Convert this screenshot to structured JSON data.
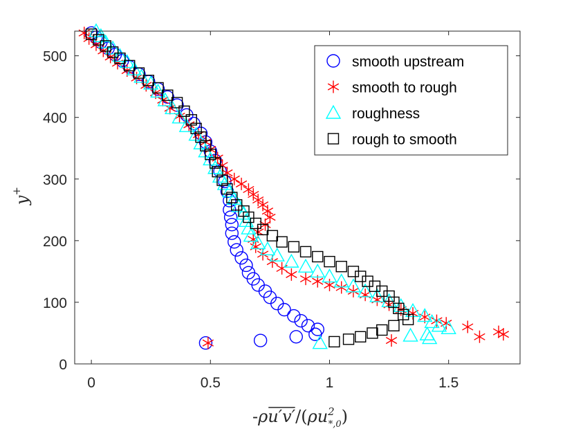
{
  "chart_data": {
    "type": "scatter",
    "xlim": [
      -0.07,
      1.8
    ],
    "ylim": [
      0,
      540
    ],
    "x_ticks": [
      0,
      0.5,
      1,
      1.5
    ],
    "x_tick_labels": [
      "0",
      "0.5",
      "1",
      "1.5"
    ],
    "y_ticks": [
      0,
      100,
      200,
      300,
      400,
      500
    ],
    "y_tick_labels": [
      "0",
      "100",
      "200",
      "300",
      "400",
      "500"
    ],
    "xlabel": {
      "prefix": "-",
      "rho": "ρ",
      "uv": "u′v′",
      "slash": "/(",
      "rho2": "ρu",
      "sup": "2",
      "sub": "*,0",
      "close": ")"
    },
    "ylabel": {
      "base": "y",
      "sup": "+"
    },
    "legend_position": "top-right",
    "grid": false,
    "series": [
      {
        "name": "smooth upstream",
        "marker": "circle",
        "color": "#0000ff",
        "points": [
          [
            0.0,
            537
          ],
          [
            0.02,
            530
          ],
          [
            0.04,
            522
          ],
          [
            0.07,
            512
          ],
          [
            0.1,
            502
          ],
          [
            0.13,
            492
          ],
          [
            0.16,
            482
          ],
          [
            0.2,
            470
          ],
          [
            0.24,
            458
          ],
          [
            0.28,
            446
          ],
          [
            0.32,
            433
          ],
          [
            0.36,
            420
          ],
          [
            0.4,
            404
          ],
          [
            0.43,
            390
          ],
          [
            0.46,
            374
          ],
          [
            0.48,
            360
          ],
          [
            0.5,
            345
          ],
          [
            0.52,
            330
          ],
          [
            0.54,
            313
          ],
          [
            0.56,
            296
          ],
          [
            0.57,
            280
          ],
          [
            0.58,
            265
          ],
          [
            0.58,
            250
          ],
          [
            0.585,
            238
          ],
          [
            0.59,
            226
          ],
          [
            0.59,
            212
          ],
          [
            0.6,
            198
          ],
          [
            0.61,
            185
          ],
          [
            0.63,
            172
          ],
          [
            0.65,
            160
          ],
          [
            0.66,
            148
          ],
          [
            0.68,
            138
          ],
          [
            0.7,
            128
          ],
          [
            0.73,
            118
          ],
          [
            0.75,
            108
          ],
          [
            0.78,
            98
          ],
          [
            0.81,
            88
          ],
          [
            0.85,
            78
          ],
          [
            0.88,
            70
          ],
          [
            0.91,
            62
          ],
          [
            0.95,
            56
          ],
          [
            0.94,
            48
          ],
          [
            0.86,
            44
          ],
          [
            0.71,
            38
          ],
          [
            0.48,
            34
          ]
        ]
      },
      {
        "name": "smooth to rough",
        "marker": "asterisk",
        "color": "#ff0000",
        "points": [
          [
            -0.03,
            537
          ],
          [
            -0.01,
            528
          ],
          [
            0.02,
            518
          ],
          [
            0.05,
            508
          ],
          [
            0.08,
            498
          ],
          [
            0.11,
            488
          ],
          [
            0.15,
            476
          ],
          [
            0.19,
            464
          ],
          [
            0.23,
            452
          ],
          [
            0.27,
            440
          ],
          [
            0.3,
            428
          ],
          [
            0.33,
            415
          ],
          [
            0.37,
            402
          ],
          [
            0.41,
            388
          ],
          [
            0.45,
            372
          ],
          [
            0.48,
            360
          ],
          [
            0.5,
            348
          ],
          [
            0.53,
            334
          ],
          [
            0.55,
            322
          ],
          [
            0.57,
            310
          ],
          [
            0.6,
            300
          ],
          [
            0.63,
            292
          ],
          [
            0.66,
            283
          ],
          [
            0.68,
            275
          ],
          [
            0.7,
            266
          ],
          [
            0.72,
            258
          ],
          [
            0.74,
            248
          ],
          [
            0.75,
            238
          ],
          [
            0.73,
            226
          ],
          [
            0.7,
            214
          ],
          [
            0.68,
            202
          ],
          [
            0.69,
            190
          ],
          [
            0.72,
            178
          ],
          [
            0.76,
            166
          ],
          [
            0.8,
            155
          ],
          [
            0.84,
            145
          ],
          [
            0.9,
            138
          ],
          [
            0.95,
            134
          ],
          [
            1.0,
            128
          ],
          [
            1.05,
            124
          ],
          [
            1.1,
            118
          ],
          [
            1.15,
            112
          ],
          [
            1.2,
            104
          ],
          [
            1.25,
            96
          ],
          [
            1.3,
            88
          ],
          [
            1.35,
            82
          ],
          [
            1.4,
            76
          ],
          [
            1.45,
            70
          ],
          [
            1.49,
            66
          ],
          [
            1.58,
            60
          ],
          [
            1.63,
            44
          ],
          [
            1.71,
            52
          ],
          [
            1.73,
            48
          ],
          [
            1.26,
            38
          ],
          [
            0.49,
            34
          ]
        ]
      },
      {
        "name": "roughness",
        "marker": "triangle",
        "color": "#00ffff",
        "points": [
          [
            0.02,
            540
          ],
          [
            0.04,
            532
          ],
          [
            0.06,
            522
          ],
          [
            0.09,
            512
          ],
          [
            0.12,
            500
          ],
          [
            0.15,
            490
          ],
          [
            0.18,
            478
          ],
          [
            0.21,
            466
          ],
          [
            0.25,
            455
          ],
          [
            0.28,
            442
          ],
          [
            0.31,
            428
          ],
          [
            0.34,
            415
          ],
          [
            0.37,
            400
          ],
          [
            0.4,
            386
          ],
          [
            0.44,
            372
          ],
          [
            0.46,
            358
          ],
          [
            0.48,
            345
          ],
          [
            0.5,
            332
          ],
          [
            0.52,
            318
          ],
          [
            0.54,
            304
          ],
          [
            0.56,
            292
          ],
          [
            0.58,
            280
          ],
          [
            0.6,
            268
          ],
          [
            0.62,
            256
          ],
          [
            0.64,
            244
          ],
          [
            0.65,
            232
          ],
          [
            0.66,
            220
          ],
          [
            0.67,
            208
          ],
          [
            0.7,
            196
          ],
          [
            0.74,
            186
          ],
          [
            0.78,
            176
          ],
          [
            0.84,
            166
          ],
          [
            0.9,
            158
          ],
          [
            0.95,
            150
          ],
          [
            1.0,
            142
          ],
          [
            1.05,
            134
          ],
          [
            1.1,
            126
          ],
          [
            1.15,
            118
          ],
          [
            1.2,
            110
          ],
          [
            1.25,
            102
          ],
          [
            1.3,
            94
          ],
          [
            1.35,
            86
          ],
          [
            1.4,
            78
          ],
          [
            1.43,
            68
          ],
          [
            1.46,
            62
          ],
          [
            1.5,
            58
          ],
          [
            1.41,
            48
          ],
          [
            1.42,
            42
          ],
          [
            1.34,
            46
          ],
          [
            0.96,
            34
          ]
        ]
      },
      {
        "name": "rough to smooth",
        "marker": "square",
        "color": "#000000",
        "points": [
          [
            0.0,
            535
          ],
          [
            0.03,
            526
          ],
          [
            0.06,
            516
          ],
          [
            0.09,
            506
          ],
          [
            0.12,
            496
          ],
          [
            0.16,
            484
          ],
          [
            0.2,
            472
          ],
          [
            0.24,
            460
          ],
          [
            0.28,
            448
          ],
          [
            0.32,
            436
          ],
          [
            0.36,
            424
          ],
          [
            0.39,
            410
          ],
          [
            0.42,
            396
          ],
          [
            0.44,
            382
          ],
          [
            0.46,
            368
          ],
          [
            0.48,
            354
          ],
          [
            0.5,
            340
          ],
          [
            0.52,
            326
          ],
          [
            0.53,
            312
          ],
          [
            0.55,
            298
          ],
          [
            0.57,
            284
          ],
          [
            0.59,
            270
          ],
          [
            0.61,
            258
          ],
          [
            0.64,
            248
          ],
          [
            0.66,
            238
          ],
          [
            0.69,
            228
          ],
          [
            0.72,
            218
          ],
          [
            0.76,
            208
          ],
          [
            0.8,
            198
          ],
          [
            0.85,
            190
          ],
          [
            0.9,
            182
          ],
          [
            0.95,
            174
          ],
          [
            1.0,
            166
          ],
          [
            1.05,
            158
          ],
          [
            1.1,
            150
          ],
          [
            1.13,
            142
          ],
          [
            1.16,
            134
          ],
          [
            1.19,
            126
          ],
          [
            1.22,
            118
          ],
          [
            1.25,
            110
          ],
          [
            1.27,
            100
          ],
          [
            1.29,
            90
          ],
          [
            1.31,
            80
          ],
          [
            1.33,
            72
          ],
          [
            1.27,
            62
          ],
          [
            1.22,
            55
          ],
          [
            1.18,
            50
          ],
          [
            1.13,
            44
          ],
          [
            1.08,
            40
          ],
          [
            1.02,
            36
          ]
        ]
      }
    ]
  }
}
